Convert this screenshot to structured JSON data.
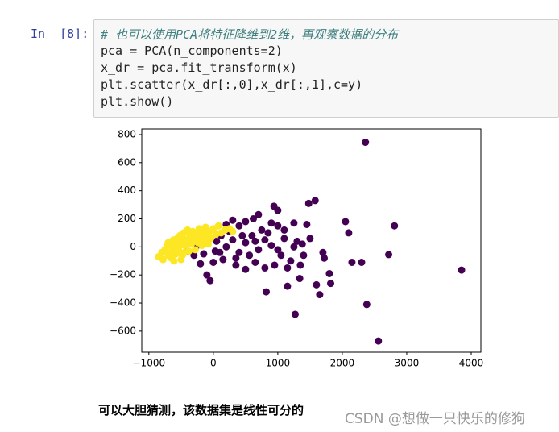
{
  "cell": {
    "prompt": "In  [8]:",
    "code": [
      "# 也可以使用PCA将特征降维到2维，再观察数据的分布",
      "pca = PCA(n_components=2)",
      "x_dr = pca.fit_transform(x)",
      "plt.scatter(x_dr[:,0],x_dr[:,1],c=y)",
      "plt.show()"
    ]
  },
  "chart_data": {
    "type": "scatter",
    "xlim": [
      -1110,
      4150
    ],
    "ylim": [
      -750,
      840
    ],
    "xticks": [
      {
        "value": -1000,
        "label": "−1000"
      },
      0,
      1000,
      2000,
      3000,
      4000
    ],
    "yticks": [
      {
        "value": -600,
        "label": "−600"
      },
      {
        "value": -400,
        "label": "−400"
      },
      {
        "value": -200,
        "label": "−200"
      },
      0,
      200,
      400,
      600,
      800
    ],
    "series": [
      {
        "color": "#440154",
        "x": [
          2360,
          3850,
          2810,
          2050,
          2100,
          2150,
          2300,
          2380,
          2560,
          2720,
          1480,
          1580,
          1600,
          1650,
          1820,
          1270,
          1150,
          1340,
          820,
          940,
          1700,
          1720,
          1250,
          1300,
          1380,
          1100,
          1000,
          900,
          700,
          620,
          500,
          300,
          400,
          200,
          1200,
          1050,
          950,
          800,
          650,
          500,
          350,
          150,
          -100,
          -200,
          -300,
          -400,
          0,
          100,
          200,
          300,
          400,
          500,
          600,
          700,
          800,
          900,
          1000,
          1100,
          1150,
          1400,
          1500,
          1450,
          1000,
          850,
          750,
          560,
          450,
          250,
          120,
          50,
          -150,
          -250,
          -100,
          30,
          350,
          650,
          1250,
          1800,
          1350,
          -50
        ],
        "values": [
          745,
          -165,
          150,
          180,
          100,
          -110,
          -110,
          -410,
          -670,
          -55,
          310,
          330,
          -270,
          -340,
          -260,
          -480,
          -280,
          -225,
          -320,
          290,
          -40,
          -80,
          0,
          40,
          20,
          120,
          150,
          170,
          230,
          200,
          180,
          190,
          150,
          160,
          -100,
          -60,
          -130,
          -150,
          -110,
          -160,
          -130,
          -90,
          -200,
          -120,
          -60,
          -30,
          -110,
          -40,
          0,
          50,
          -40,
          30,
          80,
          -20,
          50,
          10,
          -20,
          60,
          -150,
          -60,
          60,
          160,
          260,
          100,
          120,
          -60,
          80,
          110,
          80,
          40,
          -50,
          10,
          100,
          -30,
          -80,
          40,
          170,
          -190,
          -130,
          -240
        ]
      },
      {
        "color": "#fde725",
        "x": [
          -850,
          -800,
          -780,
          -750,
          -720,
          -700,
          -680,
          -650,
          -640,
          -620,
          -600,
          -580,
          -560,
          -540,
          -520,
          -500,
          -480,
          -460,
          -440,
          -420,
          -400,
          -380,
          -360,
          -340,
          -320,
          -300,
          -280,
          -260,
          -240,
          -220,
          -200,
          -180,
          -160,
          -140,
          -120,
          -100,
          -80,
          -60,
          -40,
          0,
          40,
          80,
          120,
          180,
          250,
          300,
          -700,
          -660,
          -610,
          -550,
          -500,
          -450,
          -520,
          -580,
          -480,
          -390
        ],
        "values": [
          -70,
          -40,
          -90,
          -20,
          10,
          -60,
          30,
          -80,
          -10,
          50,
          20,
          -50,
          60,
          -20,
          80,
          30,
          -60,
          100,
          10,
          50,
          120,
          -30,
          80,
          20,
          110,
          60,
          -20,
          90,
          30,
          130,
          70,
          10,
          100,
          50,
          140,
          80,
          20,
          110,
          60,
          130,
          90,
          150,
          100,
          120,
          130,
          110,
          30,
          -40,
          -100,
          0,
          -90,
          -40,
          10,
          -10,
          70,
          40
        ]
      }
    ]
  },
  "caption": "可以大胆猜测，该数据集是线性可分的",
  "watermark": "CSDN @想做一只快乐的修狗"
}
